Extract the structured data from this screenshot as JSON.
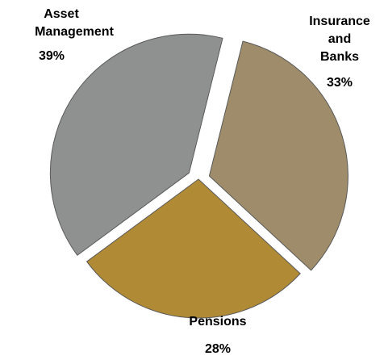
{
  "chart_data": {
    "type": "pie",
    "title": "",
    "slices": [
      {
        "label_lines": [
          "Insurance",
          "and",
          "Banks"
        ],
        "value_label": "33%",
        "value": 33,
        "color": "#9e8c6a",
        "exploded": true
      },
      {
        "label_lines": [
          "Pensions"
        ],
        "value_label": "28%",
        "value": 28,
        "color": "#b08a35",
        "exploded": false
      },
      {
        "label_lines": [
          "Asset",
          "Management"
        ],
        "value_label": "39%",
        "value": 39,
        "color": "#8f9090",
        "exploded": true
      }
    ],
    "legend": "none"
  }
}
